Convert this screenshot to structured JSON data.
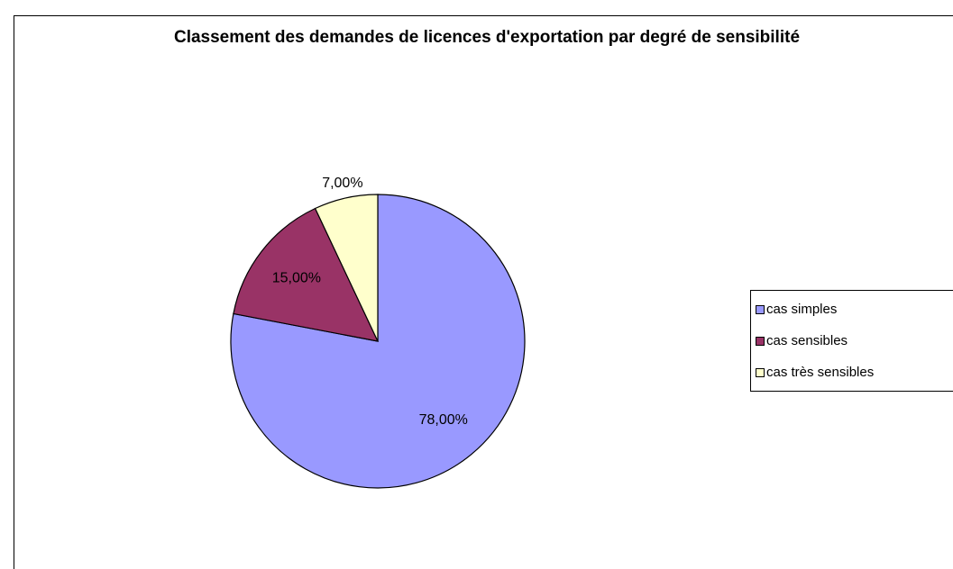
{
  "chart_data": {
    "type": "pie",
    "title": "Classement des demandes de licences d'exportation par degré de sensibilité",
    "categories": [
      "cas simples",
      "cas sensibles",
      "cas très sensibles"
    ],
    "values": [
      78,
      15,
      7
    ],
    "value_labels": [
      "78,00%",
      "15,00%",
      "7,00%"
    ],
    "colors": [
      "#9999ff",
      "#993366",
      "#ffffcc"
    ],
    "legend": "right"
  }
}
